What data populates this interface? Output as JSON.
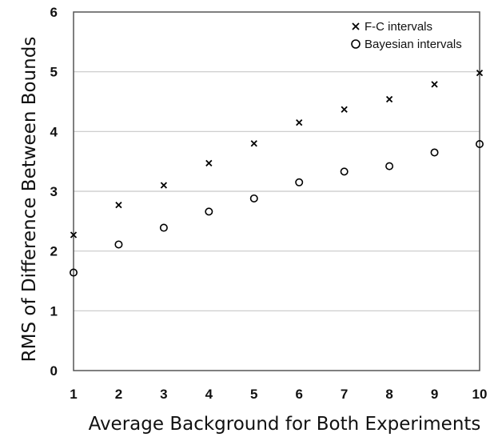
{
  "chart_data": {
    "type": "scatter",
    "title": "",
    "xlabel": "Average Background for Both Experiments",
    "ylabel": "RMS of Difference Between Bounds",
    "xlim": [
      1,
      10
    ],
    "ylim": [
      0,
      6
    ],
    "x_ticks": [
      "1",
      "2",
      "3",
      "4",
      "5",
      "6",
      "7",
      "8",
      "9",
      "10"
    ],
    "y_ticks": [
      "0",
      "1",
      "2",
      "3",
      "4",
      "5",
      "6"
    ],
    "grid": "horizontal",
    "legend_position": "top-right",
    "series": [
      {
        "name": "F-C intervals",
        "marker": "x",
        "color": "#000000",
        "x": [
          1,
          2,
          3,
          4,
          5,
          6,
          7,
          8,
          9,
          10
        ],
        "y": [
          2.27,
          2.77,
          3.1,
          3.47,
          3.8,
          4.15,
          4.37,
          4.54,
          4.79,
          4.98
        ]
      },
      {
        "name": "Bayesian intervals",
        "marker": "circle",
        "color": "#000000",
        "x": [
          1,
          2,
          3,
          4,
          5,
          6,
          7,
          8,
          9,
          10
        ],
        "y": [
          1.64,
          2.11,
          2.39,
          2.66,
          2.88,
          3.15,
          3.33,
          3.42,
          3.65,
          3.79
        ]
      }
    ]
  }
}
